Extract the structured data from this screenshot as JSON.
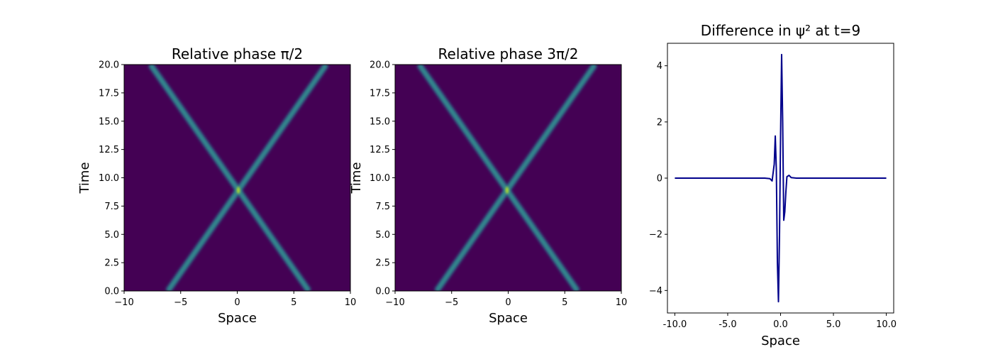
{
  "chart_data": [
    {
      "type": "heatmap",
      "title": "Relative phase π/2",
      "xlabel": "Space",
      "ylabel": "Time",
      "xlim": [
        -10,
        10
      ],
      "ylim": [
        0,
        20
      ],
      "xticks": [
        -10,
        -5,
        0,
        5,
        10
      ],
      "xtick_labels": [
        "−10",
        "−5",
        "0",
        "5",
        "10"
      ],
      "yticks": [
        0,
        2.5,
        5,
        7.5,
        10,
        12.5,
        15,
        17.5,
        20
      ],
      "ytick_labels": [
        "0.0",
        "2.5",
        "5.0",
        "7.5",
        "10.0",
        "12.5",
        "15.0",
        "17.5",
        "20.0"
      ],
      "colormap": "viridis",
      "background_color": "#440154",
      "peak_color": "#b5de2b",
      "soliton_speed": 0.7,
      "collision": {
        "x": 0.1,
        "t": 8.9
      }
    },
    {
      "type": "heatmap",
      "title": "Relative phase 3π/2",
      "xlabel": "Space",
      "ylabel": "Time",
      "xlim": [
        -10,
        10
      ],
      "ylim": [
        0,
        20
      ],
      "xticks": [
        -10,
        -5,
        0,
        5,
        10
      ],
      "xtick_labels": [
        "−10",
        "−5",
        "0",
        "5",
        "10"
      ],
      "yticks": [
        0,
        2.5,
        5,
        7.5,
        10,
        12.5,
        15,
        17.5,
        20
      ],
      "ytick_labels": [
        "0.0",
        "2.5",
        "5.0",
        "7.5",
        "10.0",
        "12.5",
        "15.0",
        "17.5",
        "20.0"
      ],
      "colormap": "viridis",
      "background_color": "#440154",
      "peak_color": "#b5de2b",
      "soliton_speed": 0.7,
      "collision": {
        "x": -0.1,
        "t": 8.9
      }
    },
    {
      "type": "line",
      "title": "Difference in ψ² at t=9",
      "xlabel": "Space",
      "ylabel": "",
      "xlim": [
        -10.7,
        10.7
      ],
      "ylim": [
        -4.8,
        4.8
      ],
      "xticks": [
        -10,
        -5,
        0,
        5,
        10
      ],
      "xtick_labels": [
        "-10.0",
        "-5.0",
        "0.0",
        "5.0",
        "10.0"
      ],
      "yticks": [
        -4,
        -2,
        0,
        2,
        4
      ],
      "ytick_labels": [
        "−4",
        "−2",
        "0",
        "2",
        "4"
      ],
      "line_color": "#00008b",
      "series": [
        {
          "x": [
            -10,
            -2,
            -1.5,
            -1.0,
            -0.8,
            -0.6,
            -0.5,
            -0.4,
            -0.3,
            -0.2,
            -0.1,
            0.0,
            0.1,
            0.2,
            0.3,
            0.4,
            0.5,
            0.6,
            0.8,
            1.0,
            1.5,
            2,
            10
          ],
          "values": [
            0,
            0,
            0,
            -0.02,
            -0.1,
            0.5,
            1.5,
            0.3,
            -3.0,
            -4.4,
            -2.0,
            1.5,
            4.4,
            2.0,
            -1.5,
            -1.2,
            -0.5,
            0.05,
            0.1,
            0.02,
            0,
            0,
            0
          ]
        }
      ]
    }
  ]
}
